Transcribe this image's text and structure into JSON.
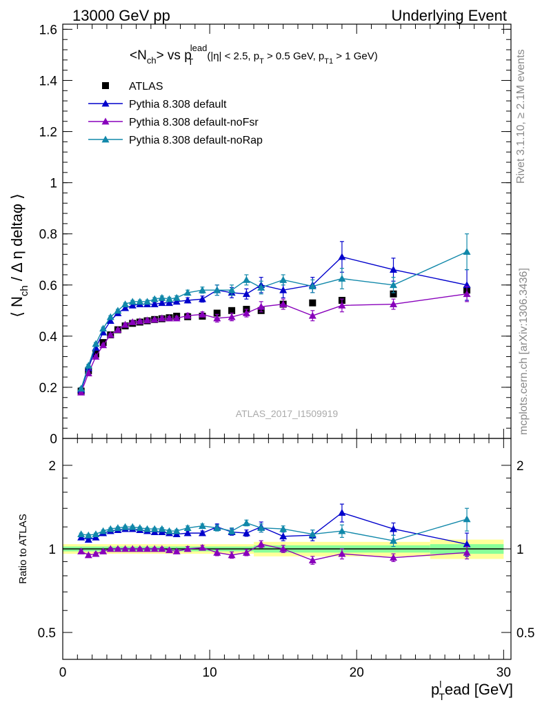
{
  "header": {
    "left": "13000 GeV pp",
    "right": "Underlying Event"
  },
  "side_labels": {
    "rivet": "Rivet 3.1.10, ≥ 2.1M events",
    "mcplots": "mcplots.cern.ch [arXiv:1306.3436]"
  },
  "chart_data": [
    {
      "type": "scatter",
      "panel": "main",
      "title": "<N_ch> vs p_T^lead (|η| < 2.5, p_T > 0.5 GeV, p_T1 > 1 GeV)",
      "title_parts": {
        "main": "<N",
        "ch": "ch",
        "vs": "> vs p",
        "lead": "lead",
        "T": "T",
        "cuts_a": "(|η| < 2.5, p",
        "cuts_b": " > 0.5 GeV, p",
        "cuts_T1": "T1",
        "cuts_c": " > 1 GeV)"
      },
      "ylabel": "⟨ N_ch / Δη deltaφ ⟩",
      "ylabel_parts": {
        "a": "⟨ N",
        "ch": "ch",
        "b": " / Δ η deltaφ ⟩"
      },
      "watermark": "ATLAS_2017_I1509919",
      "xlim": [
        0,
        30.5
      ],
      "ylim": [
        0,
        1.62
      ],
      "y_ticks": [
        0,
        0.2,
        0.4,
        0.6,
        0.8,
        1,
        1.2,
        1.4,
        1.6
      ],
      "y_tick_labels": [
        "0",
        "0.2",
        "0.4",
        "0.6",
        "0.8",
        "1",
        "1.2",
        "1.4",
        "1.6"
      ],
      "legend_position": "top-left",
      "series": [
        {
          "name": "ATLAS",
          "color": "#000000",
          "marker": "square",
          "x": [
            1.25,
            1.75,
            2.25,
            2.75,
            3.25,
            3.75,
            4.25,
            4.75,
            5.25,
            5.75,
            6.25,
            6.75,
            7.25,
            7.75,
            8.5,
            9.5,
            10.5,
            11.5,
            12.5,
            13.5,
            15,
            17,
            19,
            22.5,
            27.5
          ],
          "y": [
            0.185,
            0.265,
            0.33,
            0.375,
            0.405,
            0.425,
            0.44,
            0.45,
            0.455,
            0.46,
            0.465,
            0.468,
            0.472,
            0.478,
            0.476,
            0.478,
            0.49,
            0.5,
            0.505,
            0.5,
            0.525,
            0.53,
            0.54,
            0.565,
            0.58
          ]
        },
        {
          "name": "Pythia 8.308 default",
          "color": "#0000cc",
          "marker": "triangle",
          "x": [
            1.25,
            1.75,
            2.25,
            2.75,
            3.25,
            3.75,
            4.25,
            4.75,
            5.25,
            5.75,
            6.25,
            6.75,
            7.25,
            7.75,
            8.5,
            9.5,
            10.5,
            11.5,
            12.5,
            13.5,
            15,
            17,
            19,
            22.5,
            27.5
          ],
          "y": [
            0.19,
            0.275,
            0.355,
            0.415,
            0.46,
            0.49,
            0.51,
            0.52,
            0.525,
            0.525,
            0.525,
            0.53,
            0.53,
            0.535,
            0.54,
            0.545,
            0.58,
            0.57,
            0.565,
            0.6,
            0.58,
            0.6,
            0.71,
            0.66,
            0.6
          ],
          "err": [
            0.005,
            0.005,
            0.005,
            0.005,
            0.005,
            0.005,
            0.005,
            0.005,
            0.005,
            0.006,
            0.006,
            0.007,
            0.007,
            0.008,
            0.01,
            0.012,
            0.02,
            0.02,
            0.02,
            0.03,
            0.03,
            0.03,
            0.06,
            0.045,
            0.06
          ]
        },
        {
          "name": "Pythia 8.308 default-noFsr",
          "color": "#8800bb",
          "marker": "triangle",
          "x": [
            1.25,
            1.75,
            2.25,
            2.75,
            3.25,
            3.75,
            4.25,
            4.75,
            5.25,
            5.75,
            6.25,
            6.75,
            7.25,
            7.75,
            8.5,
            9.5,
            10.5,
            11.5,
            12.5,
            13.5,
            15,
            17,
            19,
            22.5,
            27.5
          ],
          "y": [
            0.18,
            0.255,
            0.32,
            0.365,
            0.405,
            0.425,
            0.445,
            0.455,
            0.458,
            0.462,
            0.465,
            0.47,
            0.47,
            0.47,
            0.48,
            0.485,
            0.47,
            0.475,
            0.49,
            0.515,
            0.525,
            0.48,
            0.52,
            0.525,
            0.565
          ],
          "err": [
            0.004,
            0.004,
            0.004,
            0.004,
            0.004,
            0.004,
            0.005,
            0.005,
            0.005,
            0.006,
            0.006,
            0.007,
            0.007,
            0.008,
            0.01,
            0.01,
            0.015,
            0.015,
            0.015,
            0.02,
            0.02,
            0.02,
            0.025,
            0.02,
            0.03
          ]
        },
        {
          "name": "Pythia 8.308 default-noRap",
          "color": "#1188aa",
          "marker": "triangle",
          "x": [
            1.25,
            1.75,
            2.25,
            2.75,
            3.25,
            3.75,
            4.25,
            4.75,
            5.25,
            5.75,
            6.25,
            6.75,
            7.25,
            7.75,
            8.5,
            9.5,
            10.5,
            11.5,
            12.5,
            13.5,
            15,
            17,
            19,
            22.5,
            27.5
          ],
          "y": [
            0.195,
            0.285,
            0.37,
            0.43,
            0.475,
            0.5,
            0.525,
            0.535,
            0.535,
            0.535,
            0.545,
            0.55,
            0.545,
            0.55,
            0.57,
            0.58,
            0.58,
            0.58,
            0.62,
            0.59,
            0.62,
            0.595,
            0.625,
            0.6,
            0.73
          ],
          "err": [
            0.005,
            0.005,
            0.005,
            0.005,
            0.005,
            0.005,
            0.005,
            0.005,
            0.006,
            0.006,
            0.006,
            0.007,
            0.007,
            0.008,
            0.01,
            0.012,
            0.02,
            0.02,
            0.02,
            0.025,
            0.02,
            0.025,
            0.04,
            0.03,
            0.07
          ]
        }
      ]
    },
    {
      "type": "scatter",
      "panel": "ratio",
      "ylabel": "Ratio to ATLAS",
      "xlabel": "p_T^lead [GeV]",
      "xlabel_parts": {
        "p": "p",
        "T": "T",
        "rest": "ead [GeV]",
        "sup": "l"
      },
      "yscale": "log",
      "xlim": [
        0,
        30.5
      ],
      "ylim": [
        0.4,
        2.5
      ],
      "x_ticks": [
        0,
        10,
        20,
        30
      ],
      "x_tick_labels": [
        "0",
        "10",
        "20",
        "30"
      ],
      "y_ticks": [
        0.5,
        1,
        2
      ],
      "y_tick_labels": [
        "0.5",
        "1",
        "2"
      ],
      "bands": [
        {
          "x0": 0,
          "x1": 13,
          "green": 0.02,
          "yellow": 0.04
        },
        {
          "x0": 13,
          "x1": 25,
          "green": 0.03,
          "yellow": 0.06
        },
        {
          "x0": 25,
          "x1": 30,
          "green": 0.04,
          "yellow": 0.08
        }
      ],
      "band_colors": {
        "green": "#88ff99",
        "yellow": "#ffff99"
      },
      "series": [
        {
          "name": "Pythia 8.308 default",
          "color": "#0000cc",
          "x": [
            1.25,
            1.75,
            2.25,
            2.75,
            3.25,
            3.75,
            4.25,
            4.75,
            5.25,
            5.75,
            6.25,
            6.75,
            7.25,
            7.75,
            8.5,
            9.5,
            10.5,
            11.5,
            12.5,
            13.5,
            15,
            17,
            19,
            22.5,
            27.5
          ],
          "y": [
            1.1,
            1.08,
            1.1,
            1.14,
            1.16,
            1.17,
            1.18,
            1.18,
            1.17,
            1.16,
            1.15,
            1.15,
            1.14,
            1.13,
            1.14,
            1.14,
            1.2,
            1.15,
            1.14,
            1.2,
            1.11,
            1.12,
            1.35,
            1.18,
            1.04
          ],
          "err": [
            0.01,
            0.01,
            0.01,
            0.01,
            0.01,
            0.01,
            0.01,
            0.01,
            0.01,
            0.01,
            0.01,
            0.012,
            0.012,
            0.014,
            0.02,
            0.02,
            0.03,
            0.03,
            0.03,
            0.05,
            0.04,
            0.05,
            0.1,
            0.06,
            0.1
          ]
        },
        {
          "name": "Pythia 8.308 default-noFsr",
          "color": "#8800bb",
          "x": [
            1.25,
            1.75,
            2.25,
            2.75,
            3.25,
            3.75,
            4.25,
            4.75,
            5.25,
            5.75,
            6.25,
            6.75,
            7.25,
            7.75,
            8.5,
            9.5,
            10.5,
            11.5,
            12.5,
            13.5,
            15,
            17,
            19,
            22.5,
            27.5
          ],
          "y": [
            0.98,
            0.95,
            0.96,
            0.98,
            1.0,
            1.0,
            1.0,
            1.0,
            1.0,
            1.0,
            1.0,
            1.0,
            0.99,
            0.98,
            1.0,
            1.01,
            0.97,
            0.95,
            0.97,
            1.04,
            1.0,
            0.91,
            0.96,
            0.93,
            0.97
          ],
          "err": [
            0.01,
            0.01,
            0.01,
            0.01,
            0.01,
            0.01,
            0.01,
            0.01,
            0.01,
            0.01,
            0.01,
            0.012,
            0.012,
            0.014,
            0.02,
            0.02,
            0.025,
            0.025,
            0.025,
            0.03,
            0.03,
            0.03,
            0.04,
            0.03,
            0.05
          ]
        },
        {
          "name": "Pythia 8.308 default-noRap",
          "color": "#1188aa",
          "x": [
            1.25,
            1.75,
            2.25,
            2.75,
            3.25,
            3.75,
            4.25,
            4.75,
            5.25,
            5.75,
            6.25,
            6.75,
            7.25,
            7.75,
            8.5,
            9.5,
            10.5,
            11.5,
            12.5,
            13.5,
            15,
            17,
            19,
            22.5,
            27.5
          ],
          "y": [
            1.13,
            1.12,
            1.13,
            1.16,
            1.18,
            1.19,
            1.2,
            1.2,
            1.19,
            1.18,
            1.18,
            1.18,
            1.16,
            1.16,
            1.19,
            1.21,
            1.19,
            1.16,
            1.24,
            1.19,
            1.18,
            1.13,
            1.16,
            1.07,
            1.28
          ],
          "err": [
            0.01,
            0.01,
            0.01,
            0.01,
            0.01,
            0.01,
            0.01,
            0.01,
            0.01,
            0.01,
            0.01,
            0.012,
            0.012,
            0.014,
            0.02,
            0.02,
            0.03,
            0.03,
            0.03,
            0.04,
            0.03,
            0.04,
            0.06,
            0.05,
            0.12
          ]
        }
      ]
    }
  ]
}
